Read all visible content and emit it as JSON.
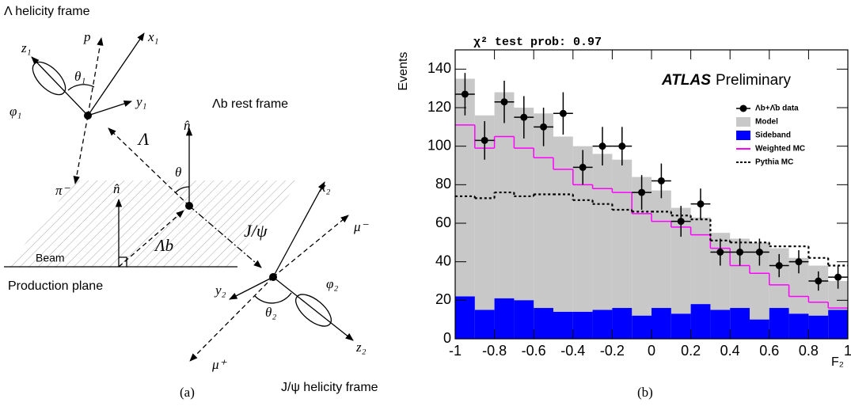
{
  "diagram": {
    "labels": [
      "Λ helicity frame",
      "p",
      "x₁",
      "z₁",
      "θ₁",
      "y₁",
      "φ₁",
      "π⁻",
      "Λb rest frame",
      "n̂",
      "Λ",
      "θ",
      "n̂",
      "J/ψ",
      "Beam",
      "Λb",
      "Production plane",
      "x₂",
      "μ⁻",
      "y₂",
      "φ₂",
      "θ₂",
      "z₂",
      "μ⁺",
      "J/ψ helicity frame"
    ],
    "caption": "(a)"
  },
  "chart_data": {
    "type": "histogram",
    "annotations": [
      "χ² test prob: 0.97",
      "ATLAS",
      "Preliminary"
    ],
    "x_label": "F₂",
    "y_label": "Events",
    "caption": "(b)",
    "bins": [
      -1,
      -0.9,
      -0.8,
      -0.7,
      -0.6,
      -0.5,
      -0.4,
      -0.3,
      -0.2,
      -0.1,
      0,
      0.1,
      0.2,
      0.3,
      0.4,
      0.5,
      0.6,
      0.7,
      0.8,
      0.9,
      1
    ],
    "series": [
      {
        "name": "Model",
        "color": "#c8c8c8",
        "style": "fill",
        "values": [
          135,
          116,
          128,
          120,
          117,
          105,
          100,
          96,
          93,
          84,
          77,
          68,
          63,
          55,
          52,
          50,
          47,
          42,
          38,
          30
        ]
      },
      {
        "name": "Sideband",
        "color": "#0000ff",
        "style": "fill",
        "values": [
          22,
          15,
          21,
          20,
          16,
          14,
          14,
          15,
          16,
          12,
          16,
          13,
          18,
          15,
          16,
          10,
          16,
          13,
          12,
          15
        ]
      },
      {
        "name": "Weighted MC",
        "color": "#ff00ff",
        "style": "step",
        "values": [
          111,
          99,
          105,
          99,
          94,
          88,
          80,
          78,
          76,
          65,
          61,
          58,
          54,
          47,
          38,
          34,
          28,
          22,
          19,
          16
        ]
      },
      {
        "name": "Pythia MC",
        "color": "#000000",
        "style": "dotted",
        "values": [
          74,
          73,
          76,
          74,
          75,
          75,
          72,
          70,
          67,
          66,
          66,
          64,
          62,
          51,
          50,
          50,
          48,
          48,
          42,
          38
        ]
      },
      {
        "name": "Λb+Λ̄b data",
        "color": "#000000",
        "style": "points",
        "values": [
          127,
          103,
          123,
          115,
          110,
          117,
          89,
          100,
          100,
          76,
          82,
          61,
          70,
          45,
          45,
          45,
          38,
          40,
          30,
          32
        ],
        "errors": [
          11,
          10,
          11,
          11,
          10,
          11,
          9,
          10,
          10,
          9,
          9,
          8,
          8,
          7,
          7,
          7,
          6,
          6,
          5,
          6
        ]
      }
    ],
    "xlim": [
      -1,
      1
    ],
    "ylim": [
      0,
      150
    ],
    "xticks": [
      -1,
      -0.8,
      -0.6,
      -0.4,
      -0.2,
      0,
      0.2,
      0.4,
      0.6,
      0.8,
      1
    ],
    "yticks": [
      0,
      20,
      40,
      60,
      80,
      100,
      120,
      140
    ],
    "legend": "upper right"
  }
}
